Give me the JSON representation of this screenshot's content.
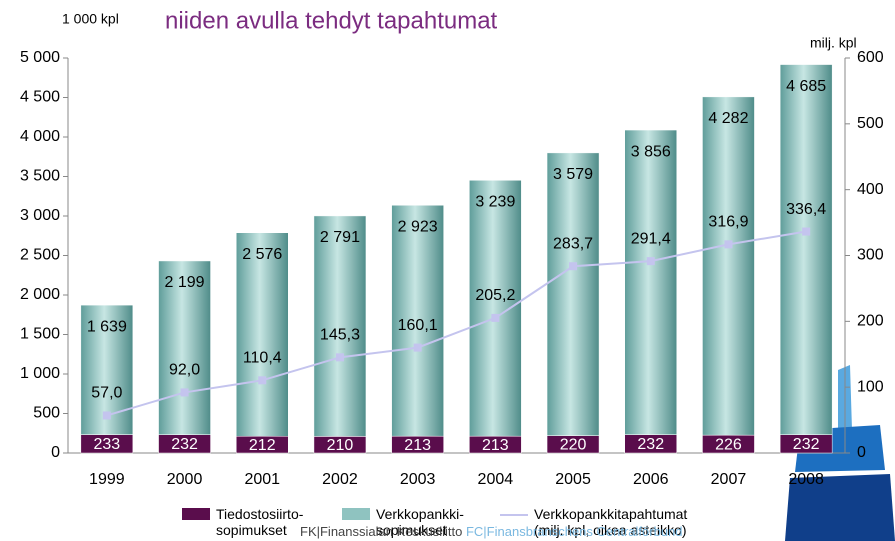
{
  "chart_data": {
    "type": "bar",
    "title": "niiden avulla tehdyt tapahtumat",
    "y_label": "1 000 kpl",
    "y2_label": "milj. kpl",
    "categories": [
      "1999",
      "2000",
      "2001",
      "2002",
      "2003",
      "2004",
      "2005",
      "2006",
      "2007",
      "2008"
    ],
    "stacked": true,
    "series": [
      {
        "name": "Tiedostosiirto-sopimukset",
        "color": "#5a0d4c",
        "type": "bar",
        "values": [
          233,
          232,
          212,
          210,
          213,
          213,
          220,
          232,
          226,
          232
        ]
      },
      {
        "name": "Verkkopankki-sopimukset",
        "color": "#8fc3c0",
        "type": "bar",
        "values": [
          1639,
          2199,
          2576,
          2791,
          2923,
          3239,
          3579,
          3856,
          4282,
          4685
        ],
        "value_labels": [
          "1 639",
          "2 199",
          "2 576",
          "2 791",
          "2 923",
          "3 239",
          "3 579",
          "3 856",
          "4 282",
          "4 685"
        ]
      },
      {
        "name": "Verkkopankkitapahtumat (milj. kpl, oikea asteikko)",
        "color": "#c4c4ee",
        "type": "line",
        "axis": "y2",
        "values": [
          57.0,
          92.0,
          110.4,
          145.3,
          160.1,
          205.2,
          283.7,
          291.4,
          316.9,
          336.4
        ],
        "value_labels": [
          "57,0",
          "92,0",
          "110,4",
          "145,3",
          "160,1",
          "205,2",
          "283,7",
          "291,4",
          "316,9",
          "336,4"
        ]
      }
    ],
    "ylim": [
      0,
      5000
    ],
    "yticks": [
      0,
      500,
      {
        "value": 1000,
        "label": "1 000"
      },
      {
        "value": 1500,
        "label": "1 500"
      },
      {
        "value": 2000,
        "label": "2 000"
      },
      {
        "value": 2500,
        "label": "2 500"
      },
      {
        "value": 3000,
        "label": "3 000"
      },
      {
        "value": 3500,
        "label": "3 500"
      },
      {
        "value": 4000,
        "label": "4 000"
      },
      {
        "value": 4500,
        "label": "4 500"
      },
      {
        "value": 5000,
        "label": "5 000"
      }
    ],
    "y2lim": [
      0,
      600
    ],
    "y2ticks": [
      0,
      100,
      200,
      300,
      400,
      500,
      600
    ],
    "footer_fi": "FK|Finanssialan Keskusliitto",
    "footer_sv": "FC|Finansbranschens Centralförbund"
  }
}
